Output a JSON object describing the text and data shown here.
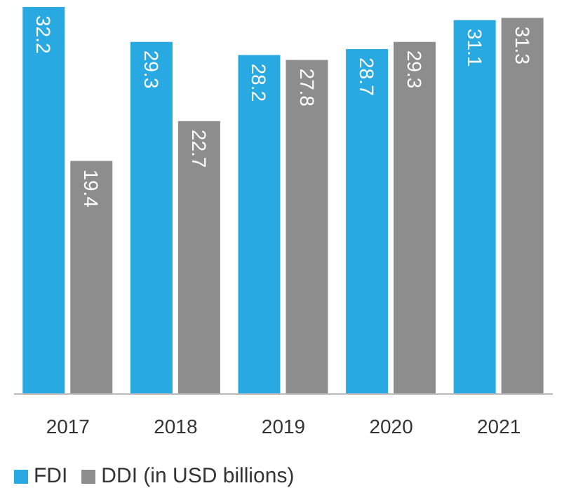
{
  "chart_data": {
    "type": "bar",
    "categories": [
      "2017",
      "2018",
      "2019",
      "2020",
      "2021"
    ],
    "data_labels": true,
    "legend": "bottom left",
    "grid": false,
    "series": [
      {
        "name": "FDI",
        "color": "#29a9e1",
        "values": [
          32.2,
          29.3,
          28.2,
          28.7,
          31.1
        ]
      },
      {
        "name": "DDI (in USD billions)",
        "color": "#8d8d8d",
        "values": [
          19.4,
          22.7,
          27.8,
          29.3,
          31.3
        ]
      }
    ]
  }
}
